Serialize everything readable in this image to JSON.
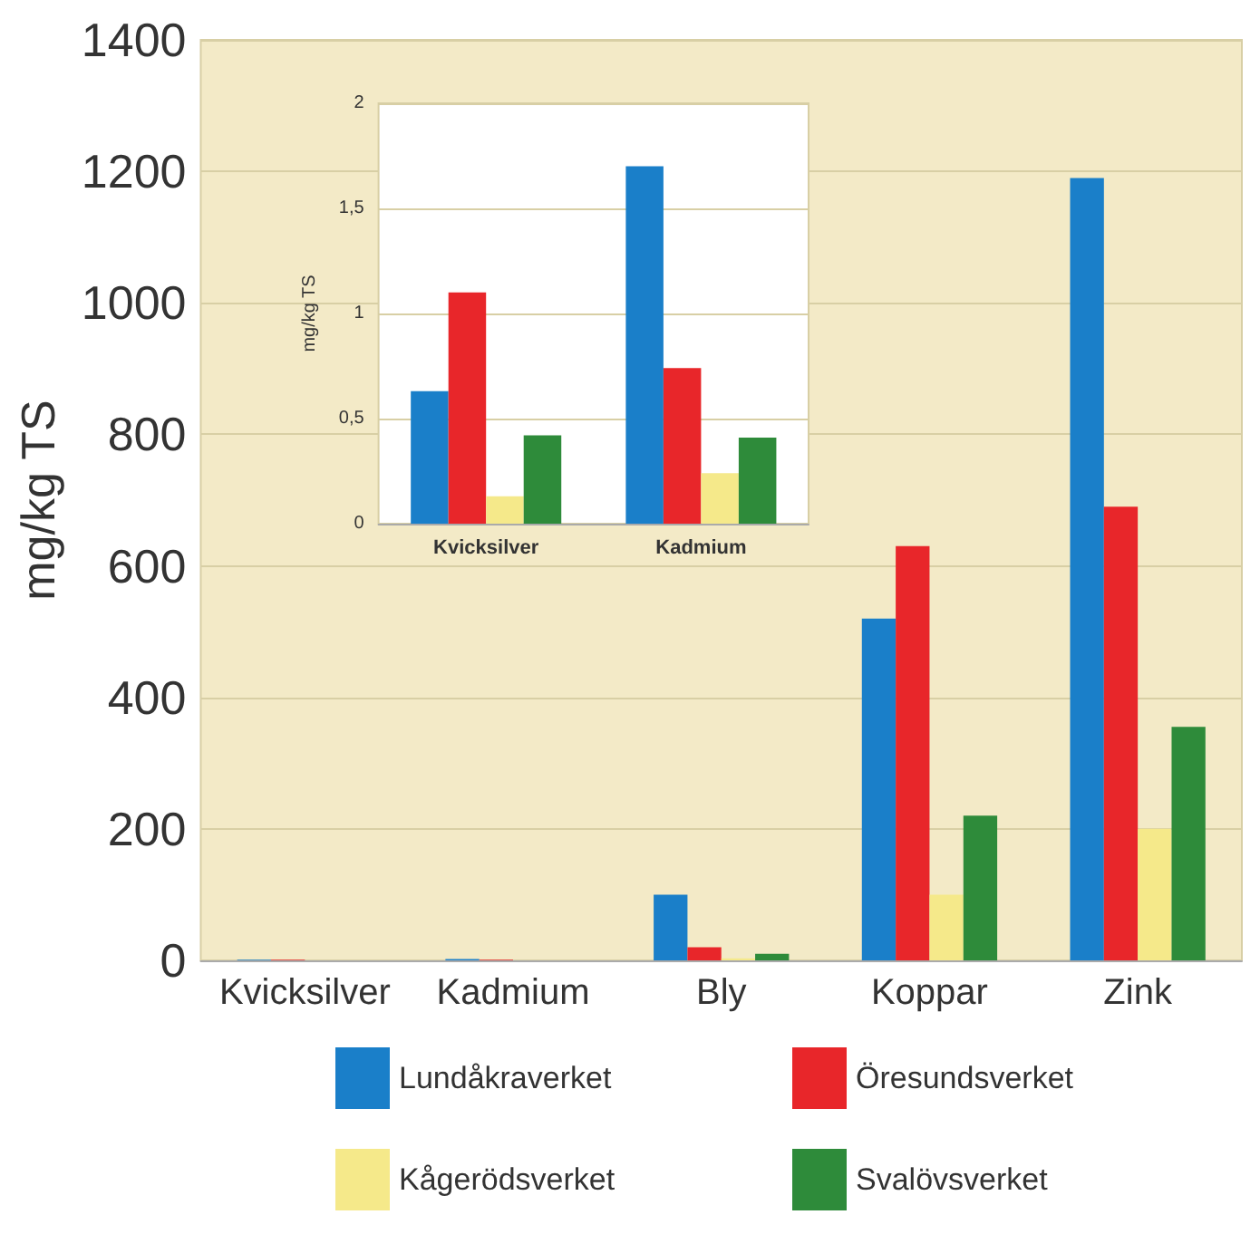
{
  "chart_data": [
    {
      "type": "bar",
      "ylabel": "mg/kg TS",
      "categories": [
        "Kvicksilver",
        "Kadmium",
        "Bly",
        "Koppar",
        "Zink"
      ],
      "series": [
        {
          "name": "Lundåkraverket",
          "color": "#1a7fc9",
          "values": [
            1,
            2,
            100,
            520,
            1190
          ]
        },
        {
          "name": "Öresundsverket",
          "color": "#e8262a",
          "values": [
            1,
            1,
            20,
            630,
            690
          ]
        },
        {
          "name": "Kågerödsverket",
          "color": "#f5e98a",
          "values": [
            0,
            0,
            3,
            100,
            200
          ]
        },
        {
          "name": "Svalövsverket",
          "color": "#2e8b3a",
          "values": [
            0,
            0,
            10,
            220,
            355
          ]
        }
      ],
      "ylim": [
        0,
        1400
      ],
      "yticks": [
        0,
        200,
        400,
        600,
        800,
        1000,
        1200,
        1400
      ],
      "grid": "y",
      "legend": "bottom"
    },
    {
      "type": "bar",
      "ylabel": "mg/kg TS",
      "categories": [
        "Kvicksilver",
        "Kadmium"
      ],
      "series": [
        {
          "color": "#1a7fc9",
          "values": [
            0.63,
            1.7
          ]
        },
        {
          "color": "#e8262a",
          "values": [
            1.1,
            0.74
          ]
        },
        {
          "color": "#f5e98a",
          "values": [
            0.13,
            0.24
          ]
        },
        {
          "color": "#2e8b3a",
          "values": [
            0.42,
            0.41
          ]
        }
      ],
      "ylim": [
        0,
        2
      ],
      "yticks": [
        0,
        {
          "value": 0.5,
          "label": "0,5"
        },
        1,
        {
          "value": 1.5,
          "label": "1,5"
        },
        2
      ],
      "grid": "y",
      "legend": false
    }
  ]
}
